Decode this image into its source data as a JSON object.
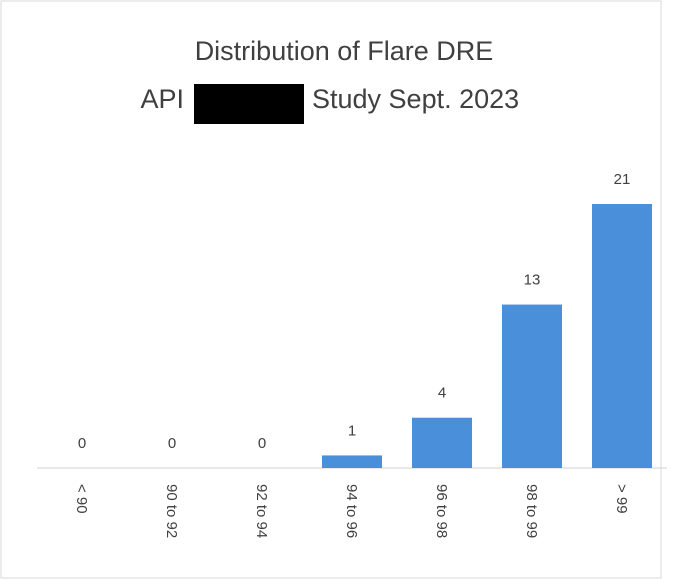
{
  "chart_data": {
    "type": "bar",
    "title": "Distribution of Flare DRE",
    "subtitle": [
      "API",
      "Study Sept. 2023"
    ],
    "categories": [
      "< 90",
      "90 to 92",
      "92 to 94",
      "94 to 96",
      "96 to 98",
      "98 to 99",
      "> 99"
    ],
    "values": [
      0,
      0,
      0,
      1,
      4,
      13,
      21
    ],
    "color": "#4a8fd9",
    "ylim": [
      0,
      21
    ]
  }
}
